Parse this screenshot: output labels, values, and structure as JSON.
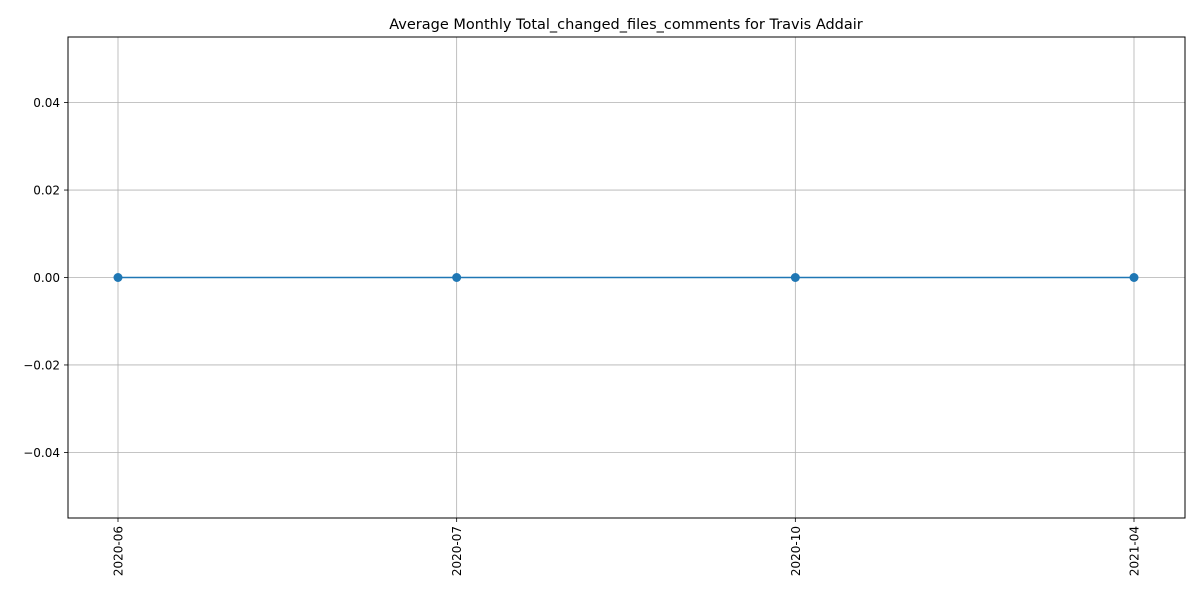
{
  "chart_data": {
    "type": "line",
    "title": "Average Monthly Total_changed_files_comments for Travis Addair",
    "xlabel": "",
    "ylabel": "",
    "categories": [
      "2020-06",
      "2020-07",
      "2020-10",
      "2021-04"
    ],
    "series": [
      {
        "values": [
          0,
          0,
          0,
          0
        ],
        "color": "#1f77b4",
        "marker": "circle"
      }
    ],
    "ylim": [
      -0.055,
      0.055
    ],
    "yticks": [
      -0.04,
      -0.02,
      0.0,
      0.02,
      0.04
    ],
    "ytick_labels": [
      "−0.04",
      "−0.02",
      "0.00",
      "0.02",
      "0.04"
    ],
    "grid": true,
    "xtick_rotation": "vertical"
  }
}
